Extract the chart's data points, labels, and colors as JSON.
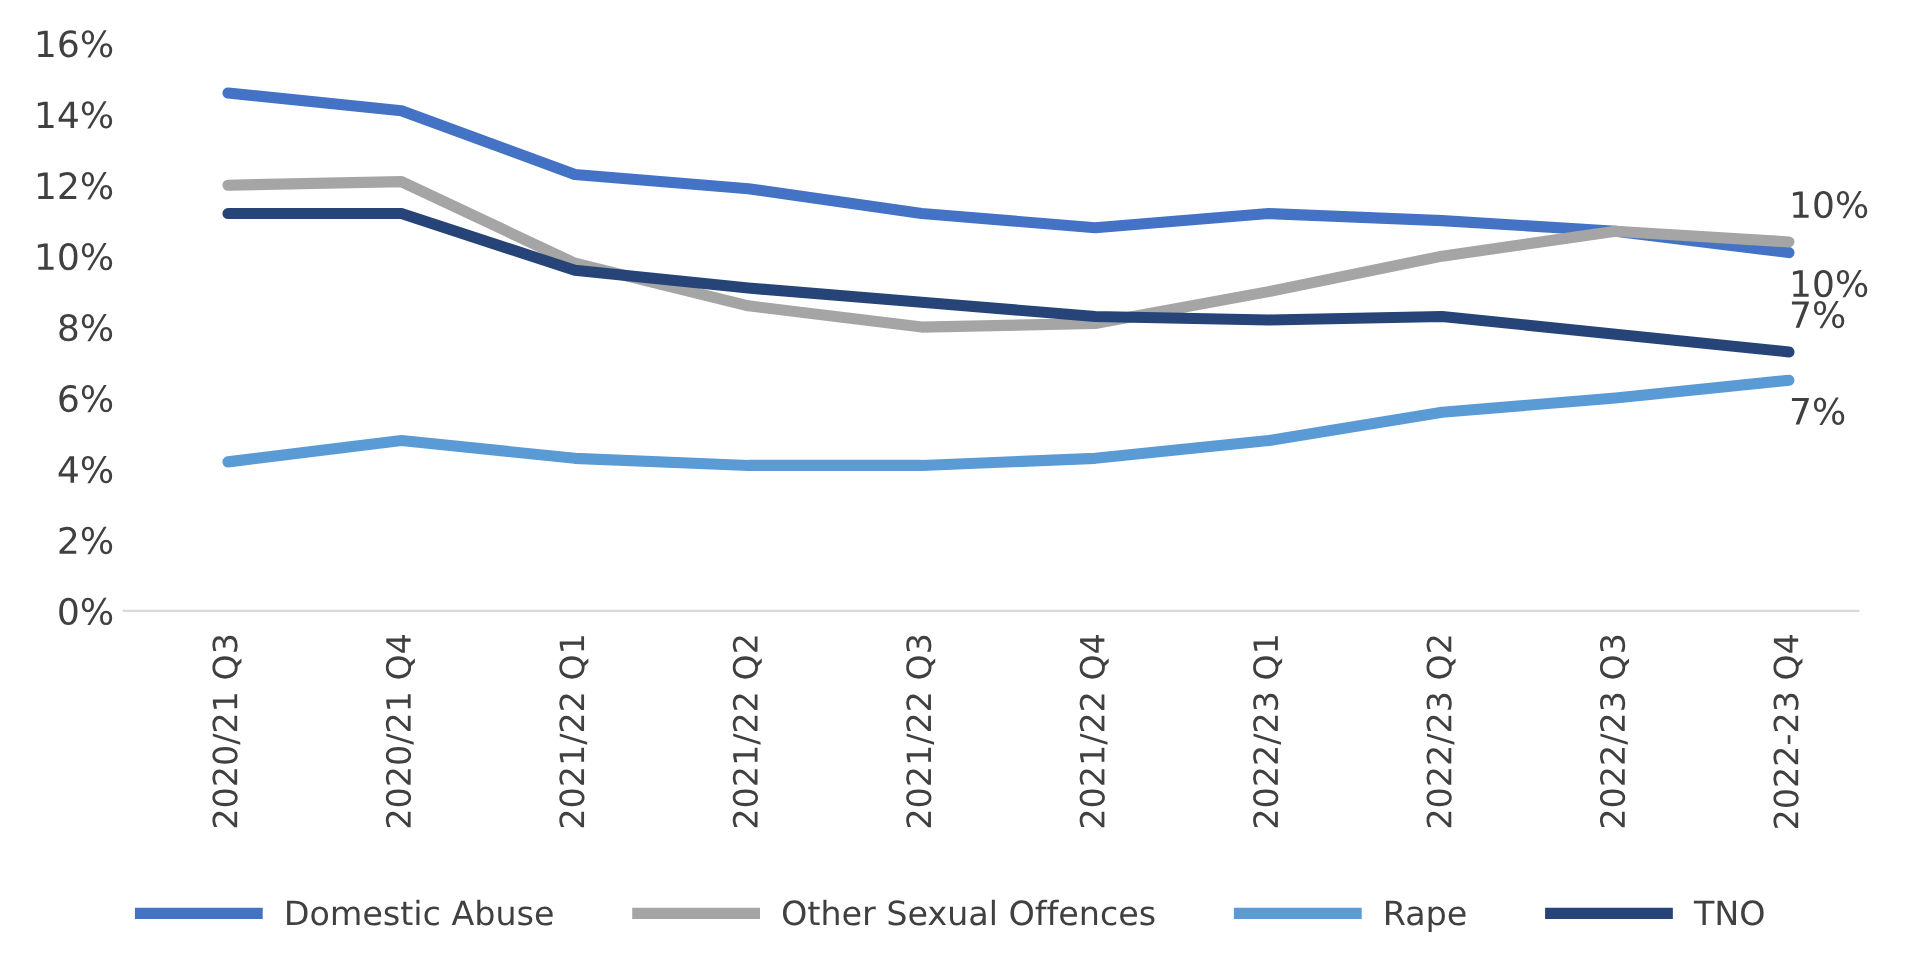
{
  "chart_data": {
    "type": "line",
    "categories": [
      "2020/21 Q3",
      "2020/21 Q4",
      "2021/22 Q1",
      "2021/22 Q2",
      "2021/22 Q3",
      "2021/22 Q4",
      "2022/23 Q1",
      "2022/23 Q2",
      "2022/23 Q3",
      "2022-23 Q4"
    ],
    "series": [
      {
        "name": "Domestic Abuse",
        "color": "#4472c4",
        "values": [
          14.6,
          14.1,
          12.3,
          11.9,
          11.2,
          10.8,
          11.2,
          11.0,
          10.7,
          10.1
        ],
        "value_labels": [
          null,
          null,
          null,
          null,
          null,
          null,
          null,
          null,
          null,
          "10%"
        ]
      },
      {
        "name": "Other Sexual Offences",
        "color": "#a5a5a5",
        "values": [
          12.0,
          12.1,
          9.8,
          8.6,
          8.0,
          8.1,
          9.0,
          10.0,
          10.7,
          10.4
        ],
        "value_labels": [
          null,
          null,
          null,
          null,
          null,
          null,
          null,
          null,
          null,
          "10%"
        ]
      },
      {
        "name": "Rape",
        "color": "#5b9bd5",
        "values": [
          4.2,
          4.8,
          4.3,
          4.1,
          4.1,
          4.3,
          4.8,
          5.6,
          6.0,
          6.5
        ],
        "value_labels": [
          null,
          null,
          null,
          null,
          null,
          null,
          null,
          null,
          null,
          "7%"
        ]
      },
      {
        "name": "TNO",
        "color": "#264478",
        "values": [
          11.2,
          11.2,
          9.6,
          9.1,
          8.7,
          8.3,
          8.2,
          8.3,
          7.8,
          7.3
        ],
        "value_labels": [
          null,
          null,
          null,
          null,
          null,
          null,
          null,
          null,
          null,
          "7%"
        ]
      }
    ],
    "ylim": [
      0,
      16
    ],
    "yticks": [
      {
        "value": 0,
        "label": "0%"
      },
      {
        "value": 2,
        "label": "2%"
      },
      {
        "value": 4,
        "label": "4%"
      },
      {
        "value": 6,
        "label": "6%"
      },
      {
        "value": 8,
        "label": "8%"
      },
      {
        "value": 10,
        "label": "10%"
      },
      {
        "value": 12,
        "label": "12%"
      },
      {
        "value": 14,
        "label": "14%"
      },
      {
        "value": 16,
        "label": "16%"
      }
    ],
    "grid": false,
    "legend": "bottom",
    "marker": "none",
    "line_style": "solid"
  }
}
